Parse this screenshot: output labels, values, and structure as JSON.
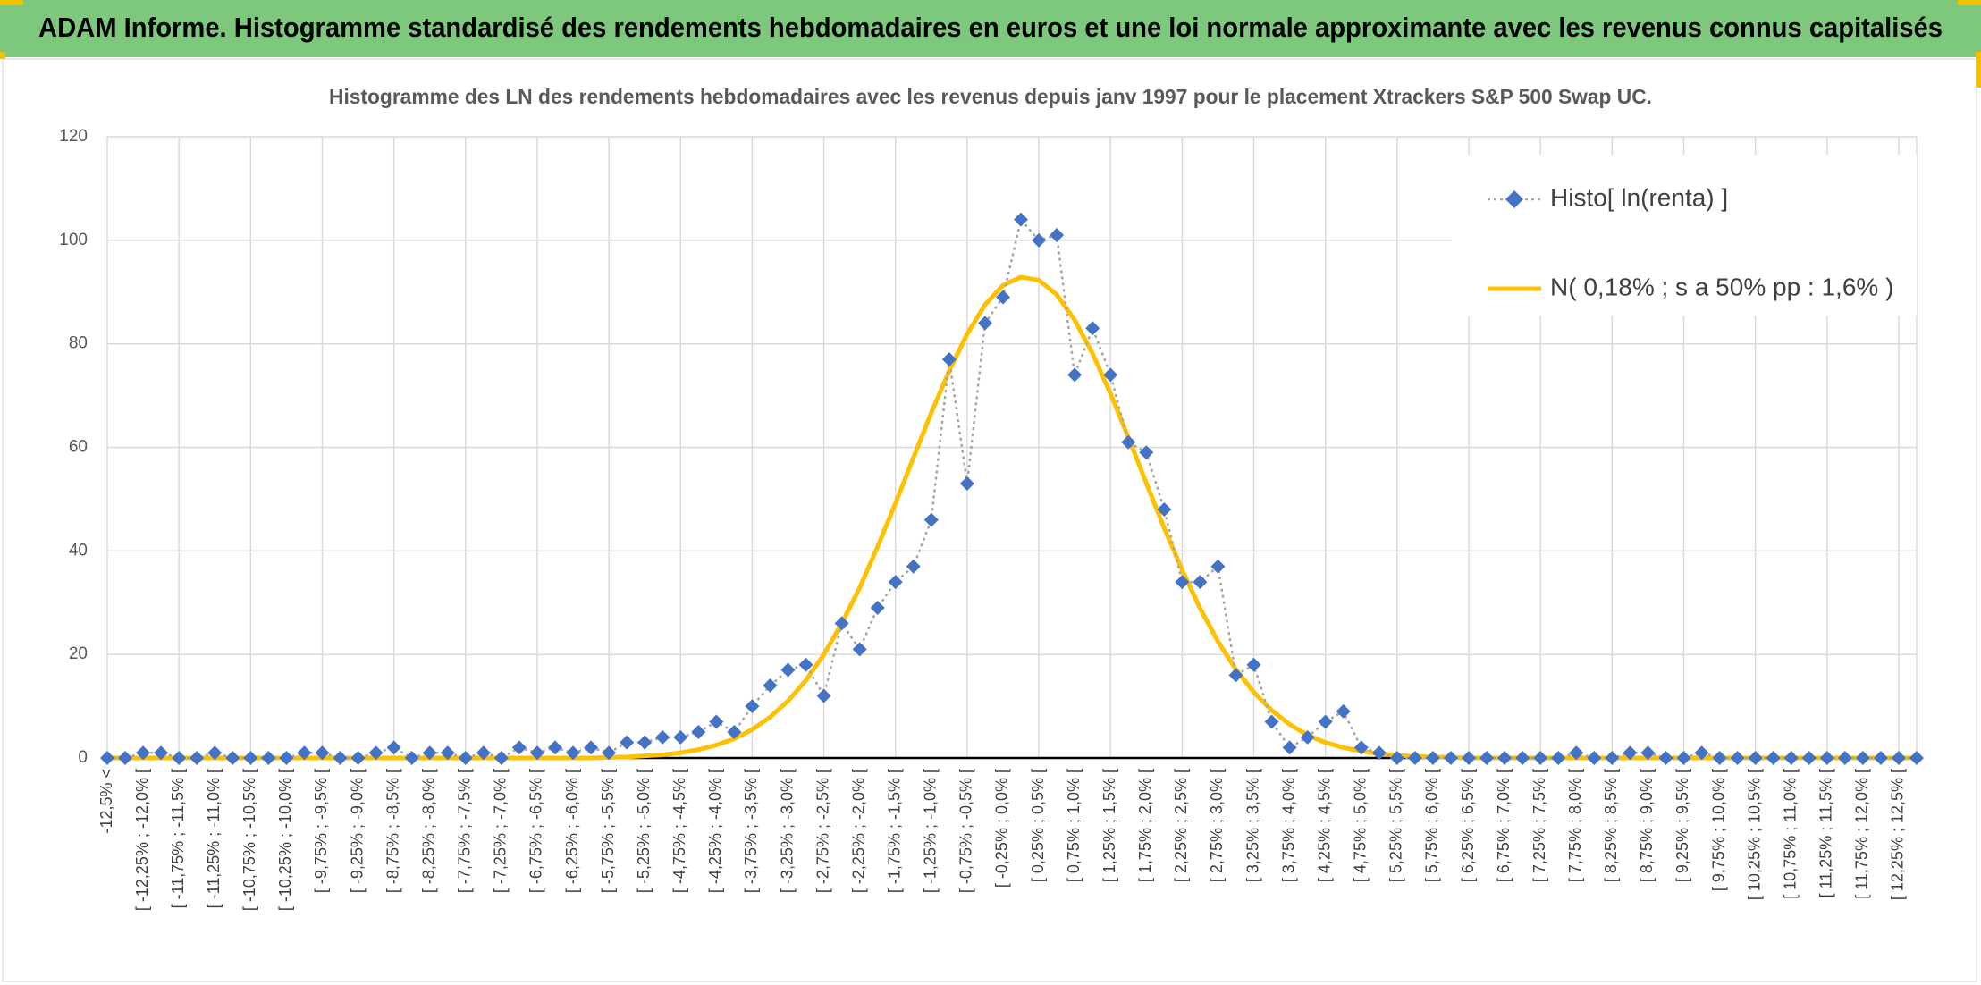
{
  "header": {
    "title": "ADAM Informe. Histogramme standardisé des rendements hebdomadaires en euros et une loi normale approximante avec les revenus connus capitalisés"
  },
  "chart_data": {
    "type": "line",
    "title": "Histogramme des LN des rendements hebdomadaires avec les revenus depuis janv 1997 pour le placement Xtrackers S&P 500 Swap UC.",
    "categories": [
      "-12,5% <",
      null,
      "[ -12,25% ; -12,0% [",
      null,
      "[ -11,75% ; -11,5% [",
      null,
      "[ -11,25% ; -11,0% [",
      null,
      "[ -10,75% ; -10,5% [",
      null,
      "[ -10,25% ; -10,0% [",
      null,
      "[ -9,75% ; -9,5% [",
      null,
      "[ -9,25% ; -9,0% [",
      null,
      "[ -8,75% ; -8,5% [",
      null,
      "[ -8,25% ; -8,0% [",
      null,
      "[ -7,75% ; -7,5% [",
      null,
      "[ -7,25% ; -7,0% [",
      null,
      "[ -6,75% ; -6,5% [",
      null,
      "[ -6,25% ; -6,0% [",
      null,
      "[ -5,75% ; -5,5% [",
      null,
      "[ -5,25% ; -5,0% [",
      null,
      "[ -4,75% ; -4,5% [",
      null,
      "[ -4,25% ; -4,0% [",
      null,
      "[ -3,75% ; -3,5% [",
      null,
      "[ -3,25% ; -3,0% [",
      null,
      "[ -2,75% ; -2,5% [",
      null,
      "[ -2,25% ; -2,0% [",
      null,
      "[ -1,75% ; -1,5% [",
      null,
      "[ -1,25% ; -1,0% [",
      null,
      "[ -0,75% ; -0,5% [",
      null,
      "[ -0,25% ; 0,0% [",
      null,
      "[ 0,25% ; 0,5% [",
      null,
      "[ 0,75% ; 1,0% [",
      null,
      "[ 1,25% ; 1,5% [",
      null,
      "[ 1,75% ; 2,0% [",
      null,
      "[ 2,25% ; 2,5% [",
      null,
      "[ 2,75% ; 3,0% [",
      null,
      "[ 3,25% ; 3,5% [",
      null,
      "[ 3,75% ; 4,0% [",
      null,
      "[ 4,25% ; 4,5% [",
      null,
      "[ 4,75% ; 5,0% [",
      null,
      "[ 5,25% ; 5,5% [",
      null,
      "[ 5,75% ; 6,0% [",
      null,
      "[ 6,25% ; 6,5% [",
      null,
      "[ 6,75% ; 7,0% [",
      null,
      "[ 7,25% ; 7,5% [",
      null,
      "[ 7,75% ; 8,0% [",
      null,
      "[ 8,25% ; 8,5% [",
      null,
      "[ 8,75% ; 9,0% [",
      null,
      "[ 9,25% ; 9,5% [",
      null,
      "[ 9,75% ; 10,0% [",
      null,
      "[ 10,25% ; 10,5% [",
      null,
      "[ 10,75% ; 11,0% [",
      null,
      "[ 11,25% ; 11,5% [",
      null,
      "[ 11,75% ; 12,0% [",
      null,
      "[ 12,25% ; 12,5% [",
      null
    ],
    "series": [
      {
        "name": "Histo[ ln(renta) ]",
        "color": "#4472c4",
        "line_color": "#a5a5a5",
        "marker": "diamond",
        "dashed": true,
        "values": [
          0,
          0,
          1,
          1,
          0,
          0,
          1,
          0,
          0,
          0,
          0,
          1,
          1,
          0,
          0,
          1,
          2,
          0,
          1,
          1,
          0,
          1,
          0,
          2,
          1,
          2,
          1,
          2,
          1,
          3,
          3,
          4,
          4,
          5,
          7,
          5,
          10,
          14,
          17,
          18,
          12,
          26,
          21,
          29,
          34,
          37,
          46,
          77,
          53,
          84,
          89,
          104,
          100,
          101,
          74,
          83,
          74,
          61,
          59,
          48,
          34,
          34,
          37,
          16,
          18,
          7,
          2,
          4,
          7,
          9,
          2,
          1,
          0,
          0,
          0,
          0,
          0,
          0,
          0,
          0,
          0,
          0,
          1,
          0,
          0,
          1,
          1,
          0,
          0,
          1,
          0,
          0,
          0,
          0,
          0,
          0,
          0,
          0,
          0,
          0,
          0,
          0
        ]
      },
      {
        "name": "N( 0,18% ; s a 50% pp : 1,6% )",
        "color": "#ffc000",
        "marker": "none",
        "dashed": false,
        "values": [
          0,
          0,
          0,
          0,
          0,
          0,
          0,
          0,
          0,
          0,
          0,
          0,
          0,
          0,
          0,
          0,
          0,
          0,
          0,
          0,
          0,
          0,
          0,
          0,
          0,
          0,
          0,
          0,
          0.1,
          0.2,
          0.4,
          0.6,
          1.0,
          1.6,
          2.5,
          3.7,
          5.5,
          7.9,
          11.0,
          15.0,
          20.0,
          26.0,
          32.9,
          40.8,
          49.2,
          58.0,
          66.7,
          74.8,
          81.9,
          87.6,
          91.3,
          92.9,
          92.3,
          89.5,
          84.6,
          78.1,
          70.4,
          61.9,
          53.1,
          44.4,
          36.3,
          28.9,
          22.5,
          17.1,
          12.7,
          9.2,
          6.5,
          4.4,
          3.0,
          2.0,
          1.3,
          0.8,
          0.5,
          0.3,
          0.2,
          0.1,
          0,
          0,
          0,
          0,
          0,
          0,
          0,
          0,
          0,
          0,
          0,
          0,
          0,
          0,
          0,
          0,
          0,
          0,
          0,
          0,
          0,
          0,
          0,
          0,
          0,
          0
        ]
      }
    ],
    "ylim": [
      0,
      120
    ],
    "yticks": [
      0,
      20,
      40,
      60,
      80,
      100,
      120
    ],
    "grid": true,
    "legend": "top-right"
  }
}
